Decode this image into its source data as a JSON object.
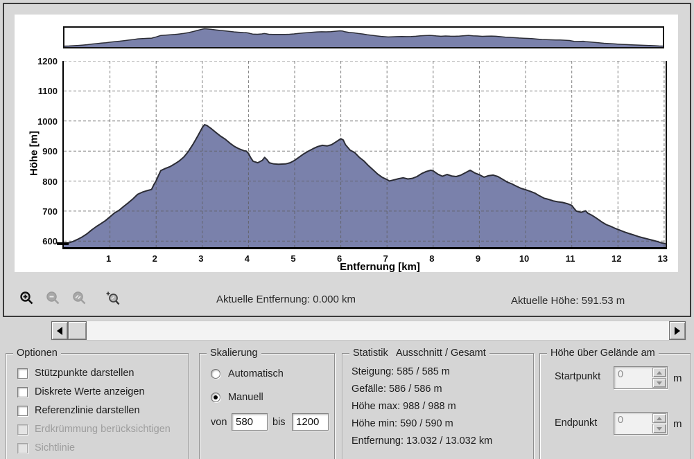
{
  "toolbar": {
    "aktuelle_entfernung": "Aktuelle Entfernung: 0.000 km",
    "aktuelle_hoehe": "Aktuelle Höhe: 591.53 m",
    "icons": [
      "zoom-in-icon",
      "zoom-out-icon",
      "zoom-previous-icon",
      "zoom-region-icon"
    ]
  },
  "chart_data": {
    "type": "area",
    "title": "",
    "xlabel": "Entfernung [km]",
    "ylabel": "Höhe [m]",
    "xlim": [
      0,
      13.032
    ],
    "ylim": [
      580,
      1200
    ],
    "x_ticks": [
      1,
      2,
      3,
      4,
      5,
      6,
      7,
      8,
      9,
      10,
      11,
      12,
      13
    ],
    "y_ticks": [
      600,
      700,
      800,
      900,
      1000,
      1100,
      1200
    ],
    "grid": true,
    "legend": "none",
    "fill_color": "#7a81ab",
    "line_color": "#2c2d36",
    "minimap_ylim": [
      568,
      1012
    ],
    "current_position": {
      "distance_km": 0.0,
      "elevation_m": 591.53
    },
    "points": [
      [
        0,
        590
      ],
      [
        0.1,
        594
      ],
      [
        0.2,
        599
      ],
      [
        0.3,
        606
      ],
      [
        0.4,
        614
      ],
      [
        0.5,
        624
      ],
      [
        0.6,
        637
      ],
      [
        0.7,
        648
      ],
      [
        0.8,
        658
      ],
      [
        0.9,
        668
      ],
      [
        1.0,
        681
      ],
      [
        1.1,
        694
      ],
      [
        1.2,
        703
      ],
      [
        1.3,
        716
      ],
      [
        1.4,
        728
      ],
      [
        1.5,
        741
      ],
      [
        1.6,
        756
      ],
      [
        1.7,
        763
      ],
      [
        1.8,
        768
      ],
      [
        1.9,
        772
      ],
      [
        1.95,
        788
      ],
      [
        2.0,
        801
      ],
      [
        2.05,
        818
      ],
      [
        2.1,
        835
      ],
      [
        2.2,
        842
      ],
      [
        2.3,
        848
      ],
      [
        2.4,
        857
      ],
      [
        2.5,
        867
      ],
      [
        2.6,
        880
      ],
      [
        2.7,
        899
      ],
      [
        2.8,
        923
      ],
      [
        2.9,
        950
      ],
      [
        3.0,
        978
      ],
      [
        3.05,
        988
      ],
      [
        3.1,
        985
      ],
      [
        3.2,
        974
      ],
      [
        3.3,
        961
      ],
      [
        3.4,
        949
      ],
      [
        3.5,
        939
      ],
      [
        3.6,
        926
      ],
      [
        3.7,
        915
      ],
      [
        3.8,
        907
      ],
      [
        3.9,
        901
      ],
      [
        3.95,
        900
      ],
      [
        4.0,
        892
      ],
      [
        4.05,
        877
      ],
      [
        4.1,
        866
      ],
      [
        4.2,
        861
      ],
      [
        4.3,
        869
      ],
      [
        4.35,
        879
      ],
      [
        4.4,
        871
      ],
      [
        4.45,
        861
      ],
      [
        4.55,
        857
      ],
      [
        4.65,
        856
      ],
      [
        4.8,
        857
      ],
      [
        4.9,
        861
      ],
      [
        5.0,
        869
      ],
      [
        5.1,
        880
      ],
      [
        5.2,
        891
      ],
      [
        5.3,
        900
      ],
      [
        5.4,
        908
      ],
      [
        5.5,
        915
      ],
      [
        5.6,
        919
      ],
      [
        5.7,
        917
      ],
      [
        5.8,
        921
      ],
      [
        5.9,
        931
      ],
      [
        6.0,
        941
      ],
      [
        6.05,
        937
      ],
      [
        6.1,
        921
      ],
      [
        6.2,
        903
      ],
      [
        6.3,
        895
      ],
      [
        6.4,
        879
      ],
      [
        6.5,
        867
      ],
      [
        6.6,
        851
      ],
      [
        6.7,
        837
      ],
      [
        6.8,
        823
      ],
      [
        6.9,
        812
      ],
      [
        7.0,
        805
      ],
      [
        7.05,
        800
      ],
      [
        7.15,
        804
      ],
      [
        7.25,
        808
      ],
      [
        7.35,
        811
      ],
      [
        7.45,
        807
      ],
      [
        7.55,
        809
      ],
      [
        7.65,
        815
      ],
      [
        7.75,
        825
      ],
      [
        7.85,
        832
      ],
      [
        7.95,
        836
      ],
      [
        8.0,
        834
      ],
      [
        8.1,
        823
      ],
      [
        8.2,
        816
      ],
      [
        8.3,
        822
      ],
      [
        8.4,
        817
      ],
      [
        8.5,
        815
      ],
      [
        8.6,
        820
      ],
      [
        8.7,
        828
      ],
      [
        8.8,
        836
      ],
      [
        8.9,
        827
      ],
      [
        9.0,
        821
      ],
      [
        9.1,
        813
      ],
      [
        9.2,
        818
      ],
      [
        9.3,
        820
      ],
      [
        9.4,
        815
      ],
      [
        9.5,
        806
      ],
      [
        9.6,
        797
      ],
      [
        9.7,
        791
      ],
      [
        9.8,
        783
      ],
      [
        9.9,
        776
      ],
      [
        10.0,
        771
      ],
      [
        10.1,
        766
      ],
      [
        10.2,
        760
      ],
      [
        10.3,
        751
      ],
      [
        10.4,
        743
      ],
      [
        10.5,
        739
      ],
      [
        10.6,
        734
      ],
      [
        10.7,
        731
      ],
      [
        10.8,
        729
      ],
      [
        10.9,
        725
      ],
      [
        11.0,
        719
      ],
      [
        11.05,
        709
      ],
      [
        11.1,
        700
      ],
      [
        11.2,
        696
      ],
      [
        11.3,
        701
      ],
      [
        11.35,
        693
      ],
      [
        11.45,
        685
      ],
      [
        11.55,
        675
      ],
      [
        11.65,
        664
      ],
      [
        11.75,
        655
      ],
      [
        11.85,
        649
      ],
      [
        11.95,
        642
      ],
      [
        12.05,
        636
      ],
      [
        12.15,
        630
      ],
      [
        12.25,
        625
      ],
      [
        12.35,
        620
      ],
      [
        12.45,
        615
      ],
      [
        12.55,
        611
      ],
      [
        12.65,
        607
      ],
      [
        12.75,
        603
      ],
      [
        12.85,
        599
      ],
      [
        12.95,
        594
      ],
      [
        13.03,
        591
      ]
    ]
  },
  "optionen": {
    "title": "Optionen",
    "items": [
      {
        "label": "Stützpunkte darstellen",
        "checked": false,
        "enabled": true
      },
      {
        "label": "Diskrete Werte anzeigen",
        "checked": false,
        "enabled": true
      },
      {
        "label": "Referenzlinie darstellen",
        "checked": false,
        "enabled": true
      },
      {
        "label": "Erdkrümmung berücksichtigen",
        "checked": false,
        "enabled": false
      },
      {
        "label": "Sichtlinie",
        "checked": false,
        "enabled": false
      }
    ]
  },
  "skalierung": {
    "title": "Skalierung",
    "automatisch_label": "Automatisch",
    "automatisch_selected": false,
    "manuell_label": "Manuell",
    "manuell_selected": true,
    "von_label": "von",
    "von_value": "580",
    "bis_label": "bis",
    "bis_value": "1200"
  },
  "statistik": {
    "title": "Statistik   Ausschnitt / Gesamt",
    "lines": [
      "Steigung: 585 / 585 m",
      "Gefälle: 586 / 586 m",
      "Höhe max: 988 / 988 m",
      "Höhe min: 590 / 590 m",
      "Entfernung: 13.032 / 13.032 km"
    ]
  },
  "gelaende": {
    "title": "Höhe über Gelände am",
    "startpunkt_label": "Startpunkt",
    "startpunkt_value": "0",
    "endpunkt_label": "Endpunkt",
    "endpunkt_value": "0",
    "unit": "m"
  }
}
